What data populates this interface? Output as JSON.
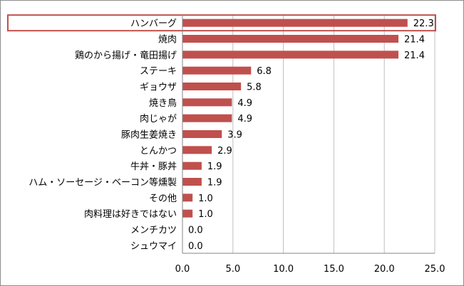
{
  "chart_data": {
    "type": "bar",
    "orientation": "horizontal",
    "title": "",
    "xlabel": "",
    "ylabel": "",
    "categories": [
      "ハンバーグ",
      "焼肉",
      "鶏のから揚げ・竜田揚げ",
      "ステーキ",
      "ギョウザ",
      "焼き鳥",
      "肉じゃが",
      "豚肉生姜焼き",
      "とんかつ",
      "牛丼・豚丼",
      "ハム・ソーセージ・ベーコン等燻製",
      "その他",
      "肉料理は好きではない",
      "メンチカツ",
      "シュウマイ"
    ],
    "values": [
      22.3,
      21.4,
      21.4,
      6.8,
      5.8,
      4.9,
      4.9,
      3.9,
      2.9,
      1.9,
      1.9,
      1.0,
      1.0,
      0.0,
      0.0
    ],
    "value_labels": [
      "22.3",
      "21.4",
      "21.4",
      "6.8",
      "5.8",
      "4.9",
      "4.9",
      "3.9",
      "2.9",
      "1.9",
      "1.9",
      "1.0",
      "1.0",
      "0.0",
      "0.0"
    ],
    "xlim": [
      0,
      25
    ],
    "x_ticks": [
      0,
      5,
      10,
      15,
      20,
      25
    ],
    "x_tick_labels": [
      "0.0",
      "5.0",
      "10.0",
      "15.0",
      "20.0",
      "25.0"
    ],
    "grid": "vertical",
    "legend": "none",
    "highlighted_category": "ハンバーグ",
    "colors": {
      "bar": "#c0504d",
      "highlight_box": "#c0504d"
    }
  }
}
